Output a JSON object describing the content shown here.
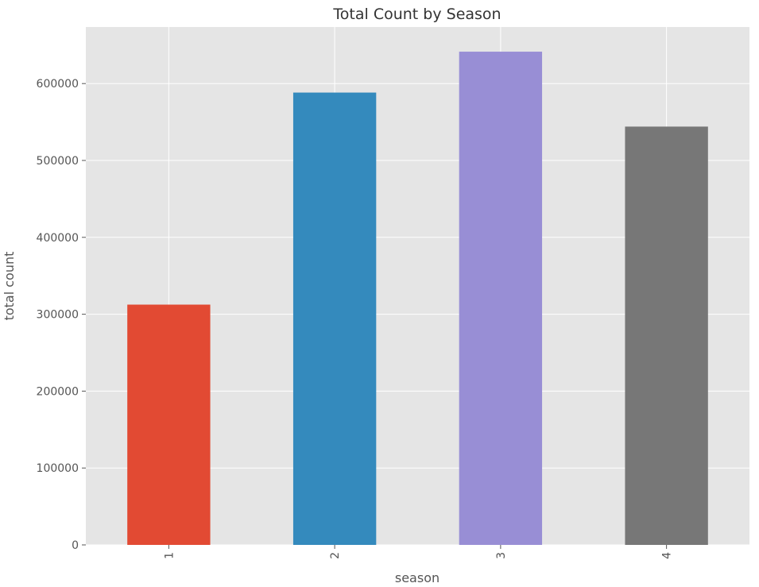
{
  "chart_data": {
    "type": "bar",
    "title": "Total Count by Season",
    "xlabel": "season",
    "ylabel": "total count",
    "categories": [
      "1",
      "2",
      "3",
      "4"
    ],
    "values": [
      312498,
      588282,
      641479,
      544034
    ],
    "colors": [
      "#E24A33",
      "#348ABD",
      "#988ED5",
      "#777777"
    ],
    "ylim": [
      0,
      673553
    ],
    "yticks": [
      0,
      100000,
      200000,
      300000,
      400000,
      500000,
      600000
    ],
    "ytick_labels": [
      "0",
      "100000",
      "200000",
      "300000",
      "400000",
      "500000",
      "600000"
    ],
    "grid": true,
    "background": "#E5E5E5",
    "grid_color": "#FFFFFF"
  }
}
